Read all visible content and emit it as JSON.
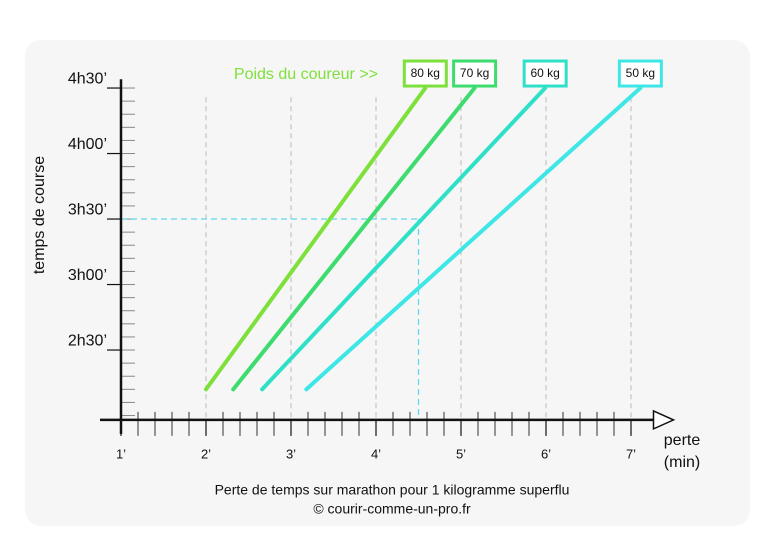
{
  "chart_data": {
    "type": "line",
    "y_label": "temps de course",
    "x_label": "perte",
    "x_unit": "(min)",
    "legend_title": "Poids du coureur >>",
    "legend_title_color": "#7ee03a",
    "caption": "Perte de temps sur marathon pour 1 kilogramme superflu",
    "credit": "© courir-comme-un-pro.fr",
    "xlim": [
      1,
      7.5
    ],
    "ylim": [
      118,
      274
    ],
    "xticks": [
      {
        "value": 1,
        "label": "1’"
      },
      {
        "value": 2,
        "label": "2’"
      },
      {
        "value": 3,
        "label": "3’"
      },
      {
        "value": 4,
        "label": "4’"
      },
      {
        "value": 5,
        "label": "5’"
      },
      {
        "value": 6,
        "label": "6’"
      },
      {
        "value": 7,
        "label": "7’"
      }
    ],
    "yticks": [
      {
        "value": 150,
        "label": "2h30’"
      },
      {
        "value": 180,
        "label": "3h00’"
      },
      {
        "value": 210,
        "label": "3h30’"
      },
      {
        "value": 240,
        "label": "4h00’"
      },
      {
        "value": 270,
        "label": "4h30’"
      }
    ],
    "grid": true,
    "reference": {
      "x": 4.5,
      "y": 210,
      "color": "#5fd8e8"
    },
    "series": [
      {
        "name": "80 kg",
        "color": "#7ee03a",
        "x": [
          2.0,
          4.58
        ],
        "values": [
          132,
          270
        ]
      },
      {
        "name": "70 kg",
        "color": "#3ddc6e",
        "x": [
          2.32,
          5.16
        ],
        "values": [
          132,
          270
        ]
      },
      {
        "name": "60 kg",
        "color": "#2fe0c8",
        "x": [
          2.66,
          5.99
        ],
        "values": [
          132,
          270
        ]
      },
      {
        "name": "50 kg",
        "color": "#3ee6e6",
        "x": [
          3.18,
          7.11
        ],
        "values": [
          132,
          270
        ]
      }
    ]
  }
}
